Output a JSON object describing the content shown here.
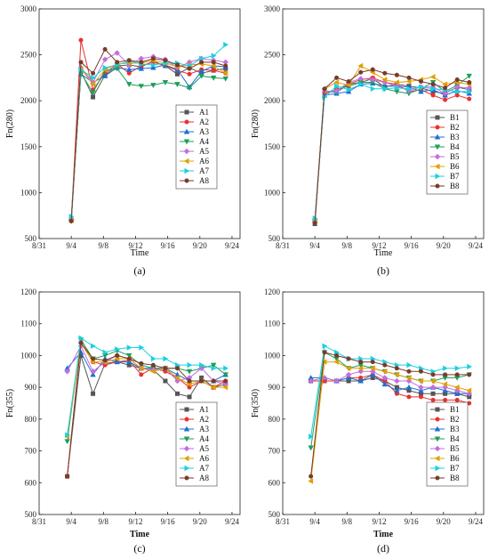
{
  "chart_data": [
    {
      "type": "line",
      "panel_label": "(a)",
      "xlabel": "Time",
      "ylabel": "Fn(280)",
      "x_ticks": [
        "8/31",
        "9/4",
        "9/8",
        "9/12",
        "9/16",
        "9/20",
        "9/24"
      ],
      "y_ticks": [
        "500",
        "1000",
        "1500",
        "2000",
        "2500",
        "3000"
      ],
      "xlim": [
        0,
        25
      ],
      "ylim": [
        500,
        3000
      ],
      "legend_position": "right",
      "x": [
        4,
        5.2,
        6.7,
        8.2,
        9.7,
        11.2,
        12.7,
        14.2,
        15.7,
        17.2,
        18.7,
        20.2,
        21.7,
        23.2
      ],
      "series": [
        {
          "name": "A1",
          "color": "#555555",
          "marker": "square",
          "values": [
            700,
            2320,
            2040,
            2280,
            2380,
            2390,
            2370,
            2430,
            2380,
            2290,
            2360,
            2300,
            2330,
            2350
          ]
        },
        {
          "name": "A2",
          "color": "#e8312f",
          "marker": "circle",
          "values": [
            700,
            2660,
            2120,
            2300,
            2400,
            2300,
            2380,
            2420,
            2380,
            2330,
            2290,
            2340,
            2330,
            2300
          ]
        },
        {
          "name": "A3",
          "color": "#1f6fd1",
          "marker": "triangle",
          "values": [
            730,
            2290,
            2200,
            2270,
            2360,
            2340,
            2350,
            2360,
            2390,
            2340,
            2150,
            2320,
            2380,
            2370
          ]
        },
        {
          "name": "A4",
          "color": "#1f9e5b",
          "marker": "tridown",
          "values": [
            690,
            2300,
            2090,
            2330,
            2350,
            2180,
            2160,
            2170,
            2200,
            2180,
            2140,
            2270,
            2250,
            2240
          ]
        },
        {
          "name": "A5",
          "color": "#c26ee0",
          "marker": "diamond",
          "values": [
            700,
            2360,
            2200,
            2450,
            2520,
            2390,
            2460,
            2480,
            2450,
            2360,
            2420,
            2460,
            2440,
            2420
          ]
        },
        {
          "name": "A6",
          "color": "#e0a000",
          "marker": "triLeft",
          "values": [
            700,
            2350,
            2180,
            2340,
            2400,
            2410,
            2410,
            2440,
            2410,
            2370,
            2390,
            2400,
            2380,
            2300
          ]
        },
        {
          "name": "A7",
          "color": "#1ccfe0",
          "marker": "triRight",
          "values": [
            740,
            2340,
            2250,
            2360,
            2390,
            2430,
            2400,
            2390,
            2410,
            2410,
            2380,
            2460,
            2490,
            2610
          ]
        },
        {
          "name": "A8",
          "color": "#7a3a2a",
          "marker": "circle",
          "values": [
            690,
            2420,
            2300,
            2560,
            2420,
            2440,
            2420,
            2460,
            2440,
            2390,
            2350,
            2420,
            2420,
            2380
          ]
        }
      ]
    },
    {
      "type": "line",
      "panel_label": "(b)",
      "xlabel": "Time",
      "ylabel": "Fn(280)",
      "x_ticks": [
        "8/31",
        "9/4",
        "9/8",
        "9/12",
        "9/16",
        "9/20",
        "9/24"
      ],
      "y_ticks": [
        "500",
        "1000",
        "1500",
        "2000",
        "2500",
        "3000"
      ],
      "xlim": [
        0,
        25
      ],
      "ylim": [
        500,
        3000
      ],
      "legend_position": "right",
      "x": [
        4,
        5.2,
        6.7,
        8.2,
        9.7,
        11.2,
        12.7,
        14.2,
        15.7,
        17.2,
        18.7,
        20.2,
        21.7,
        23.2
      ],
      "series": [
        {
          "name": "B1",
          "color": "#555555",
          "marker": "square",
          "values": [
            660,
            2080,
            2120,
            2160,
            2200,
            2240,
            2150,
            2180,
            2160,
            2140,
            2100,
            2080,
            2150,
            2120
          ]
        },
        {
          "name": "B2",
          "color": "#e8312f",
          "marker": "circle",
          "values": [
            680,
            2080,
            2110,
            2180,
            2230,
            2250,
            2200,
            2180,
            2100,
            2120,
            2060,
            2010,
            2060,
            2020
          ]
        },
        {
          "name": "B3",
          "color": "#1f6fd1",
          "marker": "triangle",
          "values": [
            700,
            2060,
            2080,
            2100,
            2180,
            2190,
            2160,
            2160,
            2150,
            2100,
            2120,
            2060,
            2110,
            2080
          ]
        },
        {
          "name": "B4",
          "color": "#1f9e5b",
          "marker": "tridown",
          "values": [
            690,
            2110,
            2090,
            2180,
            2200,
            2200,
            2130,
            2100,
            2080,
            2130,
            2200,
            2100,
            2170,
            2270
          ]
        },
        {
          "name": "B5",
          "color": "#c26ee0",
          "marker": "diamond",
          "values": [
            700,
            2100,
            2110,
            2200,
            2240,
            2230,
            2200,
            2160,
            2110,
            2150,
            2150,
            2080,
            2150,
            2140
          ]
        },
        {
          "name": "B6",
          "color": "#e0a000",
          "marker": "triLeft",
          "values": [
            680,
            2130,
            2200,
            2170,
            2380,
            2310,
            2230,
            2200,
            2210,
            2230,
            2260,
            2180,
            2200,
            2180
          ]
        },
        {
          "name": "B7",
          "color": "#1ccfe0",
          "marker": "triRight",
          "values": [
            720,
            2040,
            2160,
            2120,
            2180,
            2130,
            2130,
            2140,
            2130,
            2150,
            2130,
            2120,
            2100,
            2100
          ]
        },
        {
          "name": "B8",
          "color": "#7a3a2a",
          "marker": "circle",
          "values": [
            670,
            2130,
            2250,
            2210,
            2310,
            2340,
            2300,
            2280,
            2250,
            2210,
            2180,
            2140,
            2230,
            2200
          ]
        }
      ]
    },
    {
      "type": "line",
      "panel_label": "(c)",
      "xlabel": "Time",
      "ylabel": "Fn(355)",
      "x_ticks": [
        "8/31",
        "9/4",
        "9/8",
        "9/12",
        "9/16",
        "9/20",
        "9/24"
      ],
      "y_ticks": [
        "500",
        "600",
        "700",
        "800",
        "900",
        "1000",
        "1100",
        "1200"
      ],
      "xlim": [
        0,
        25
      ],
      "ylim": [
        500,
        1200
      ],
      "legend_position": "right",
      "x": [
        3.5,
        5.2,
        6.7,
        8.2,
        9.7,
        11.2,
        12.7,
        14.2,
        15.7,
        17.2,
        18.7,
        20.2,
        21.7,
        23.2
      ],
      "series": [
        {
          "name": "A1",
          "color": "#555555",
          "marker": "square",
          "values": [
            620,
            1000,
            880,
            975,
            980,
            970,
            960,
            955,
            920,
            880,
            870,
            930,
            900,
            910
          ]
        },
        {
          "name": "A2",
          "color": "#e8312f",
          "marker": "circle",
          "values": [
            620,
            1040,
            980,
            970,
            980,
            985,
            940,
            960,
            950,
            930,
            900,
            920,
            900,
            920
          ]
        },
        {
          "name": "A3",
          "color": "#1f6fd1",
          "marker": "triangle",
          "values": [
            960,
            1010,
            940,
            990,
            980,
            980,
            960,
            960,
            960,
            940,
            920,
            920,
            920,
            940
          ]
        },
        {
          "name": "A4",
          "color": "#1f9e5b",
          "marker": "tridown",
          "values": [
            730,
            1050,
            990,
            1000,
            1015,
            1000,
            970,
            960,
            960,
            960,
            950,
            960,
            970,
            940
          ]
        },
        {
          "name": "A5",
          "color": "#c26ee0",
          "marker": "diamond",
          "values": [
            950,
            1030,
            950,
            980,
            1000,
            990,
            960,
            955,
            960,
            920,
            930,
            960,
            920,
            910
          ]
        },
        {
          "name": "A6",
          "color": "#e0a000",
          "marker": "triLeft",
          "values": [
            745,
            1040,
            980,
            980,
            990,
            990,
            960,
            950,
            960,
            930,
            910,
            920,
            900,
            900
          ]
        },
        {
          "name": "A7",
          "color": "#1ccfe0",
          "marker": "triRight",
          "values": [
            750,
            1055,
            1030,
            1010,
            1020,
            1025,
            1025,
            990,
            990,
            970,
            970,
            970,
            960,
            960
          ]
        },
        {
          "name": "A8",
          "color": "#7a3a2a",
          "marker": "circle",
          "values": [
            620,
            1040,
            990,
            985,
            1000,
            990,
            975,
            970,
            960,
            960,
            920,
            920,
            920,
            920
          ]
        }
      ]
    },
    {
      "type": "line",
      "panel_label": "(d)",
      "xlabel": "Time",
      "ylabel": "Fn(350)",
      "x_ticks": [
        "8/31",
        "9/4",
        "9/8",
        "9/12",
        "9/16",
        "9/20",
        "9/24"
      ],
      "y_ticks": [
        "500",
        "600",
        "700",
        "800",
        "900",
        "1000",
        "1100",
        "1200"
      ],
      "xlim": [
        0,
        25
      ],
      "ylim": [
        500,
        1200
      ],
      "legend_position": "right",
      "x": [
        3.5,
        5.2,
        6.7,
        8.2,
        9.7,
        11.2,
        12.7,
        14.2,
        15.7,
        17.2,
        18.7,
        20.2,
        21.7,
        23.2
      ],
      "series": [
        {
          "name": "B1",
          "color": "#555555",
          "marker": "square",
          "values": [
            920,
            920,
            920,
            920,
            920,
            930,
            920,
            900,
            890,
            880,
            880,
            880,
            880,
            870
          ]
        },
        {
          "name": "B2",
          "color": "#e8312f",
          "marker": "circle",
          "values": [
            920,
            920,
            920,
            930,
            930,
            940,
            920,
            880,
            870,
            870,
            860,
            860,
            860,
            850
          ]
        },
        {
          "name": "B3",
          "color": "#1f6fd1",
          "marker": "triangle",
          "values": [
            930,
            930,
            920,
            930,
            920,
            940,
            910,
            890,
            900,
            890,
            900,
            890,
            880,
            880
          ]
        },
        {
          "name": "B4",
          "color": "#1f9e5b",
          "marker": "tridown",
          "values": [
            710,
            1010,
            990,
            960,
            970,
            960,
            950,
            940,
            930,
            920,
            920,
            930,
            930,
            940
          ]
        },
        {
          "name": "B5",
          "color": "#c26ee0",
          "marker": "diamond",
          "values": [
            920,
            930,
            920,
            940,
            950,
            950,
            930,
            920,
            920,
            900,
            900,
            900,
            890,
            880
          ]
        },
        {
          "name": "B6",
          "color": "#e0a000",
          "marker": "triLeft",
          "values": [
            605,
            980,
            980,
            960,
            960,
            960,
            950,
            940,
            930,
            920,
            920,
            910,
            900,
            890
          ]
        },
        {
          "name": "B7",
          "color": "#1ccfe0",
          "marker": "triRight",
          "values": [
            745,
            1030,
            1010,
            990,
            990,
            990,
            980,
            970,
            970,
            960,
            950,
            960,
            960,
            965
          ]
        },
        {
          "name": "B8",
          "color": "#7a3a2a",
          "marker": "circle",
          "values": [
            620,
            1010,
            1000,
            990,
            980,
            980,
            970,
            960,
            950,
            950,
            940,
            940,
            940,
            940
          ]
        }
      ]
    }
  ]
}
